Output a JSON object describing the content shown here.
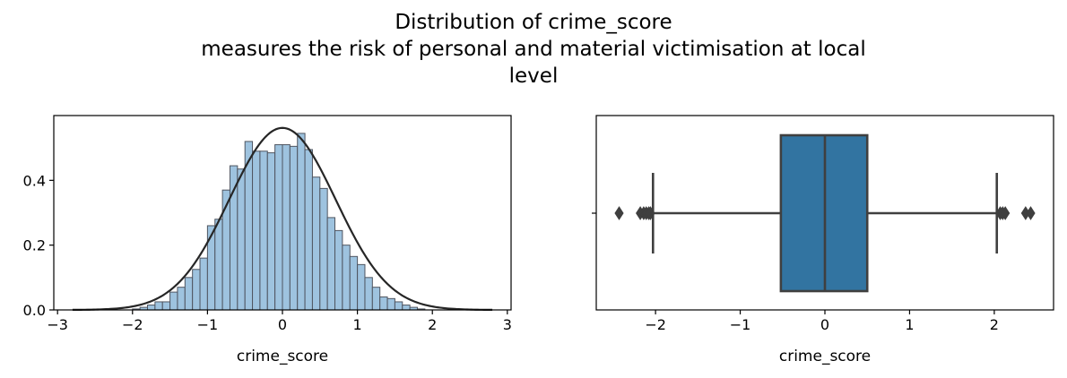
{
  "title_lines": [
    "Distribution of crime_score",
    "measures the risk of personal and material victimisation at local",
    "level"
  ],
  "chart_data": [
    {
      "type": "bar",
      "subtype": "histogram_with_density",
      "xlabel": "crime_score",
      "ylabel": "",
      "xlim": [
        -3.05,
        3.05
      ],
      "ylim": [
        0,
        0.6
      ],
      "xticks": [
        -3,
        -2,
        -1,
        0,
        1,
        2,
        3
      ],
      "yticks": [
        0.0,
        0.2,
        0.4
      ],
      "xtick_labels": [
        "−3",
        "−2",
        "−1",
        "0",
        "1",
        "2",
        "3"
      ],
      "ytick_labels": [
        "0.0",
        "0.2",
        "0.4"
      ],
      "bin_edges": [
        -2.0,
        -1.9,
        -1.8,
        -1.7,
        -1.6,
        -1.5,
        -1.4,
        -1.3,
        -1.2,
        -1.1,
        -1.0,
        -0.9,
        -0.8,
        -0.7,
        -0.6,
        -0.5,
        -0.4,
        -0.3,
        -0.2,
        -0.1,
        0.0,
        0.1,
        0.2,
        0.3,
        0.4,
        0.5,
        0.6,
        0.7,
        0.8,
        0.9,
        1.0,
        1.1,
        1.2,
        1.3,
        1.4,
        1.5,
        1.6,
        1.7,
        1.8,
        1.9
      ],
      "bin_width": 0.1,
      "values": [
        0.003,
        0.008,
        0.015,
        0.025,
        0.025,
        0.055,
        0.07,
        0.1,
        0.125,
        0.16,
        0.26,
        0.28,
        0.37,
        0.445,
        0.435,
        0.52,
        0.49,
        0.49,
        0.485,
        0.51,
        0.51,
        0.505,
        0.545,
        0.495,
        0.41,
        0.375,
        0.285,
        0.245,
        0.2,
        0.165,
        0.14,
        0.1,
        0.07,
        0.04,
        0.035,
        0.025,
        0.015,
        0.008,
        0.003
      ],
      "density_curve": {
        "distribution": "normal",
        "mean": 0.0,
        "std": 0.71,
        "x_range": [
          -2.8,
          2.8
        ]
      },
      "bar_color": "#9ec3df",
      "bar_edge_color": "#4f5560",
      "curve_color": "#262626"
    },
    {
      "type": "boxplot",
      "xlabel": "crime_score",
      "xlim": [
        -2.7,
        2.7
      ],
      "xticks": [
        -2,
        -1,
        0,
        1,
        2
      ],
      "xtick_labels": [
        "−2",
        "−1",
        "0",
        "1",
        "2"
      ],
      "q1": -0.52,
      "median": 0.0,
      "q3": 0.5,
      "whisker_low": -2.03,
      "whisker_high": 2.03,
      "outliers": [
        -2.43,
        -2.18,
        -2.14,
        -2.11,
        -2.08,
        -2.06,
        2.07,
        2.1,
        2.13,
        2.37,
        2.43
      ],
      "box_color": "#3274a1",
      "line_color": "#3f3f3f"
    }
  ]
}
